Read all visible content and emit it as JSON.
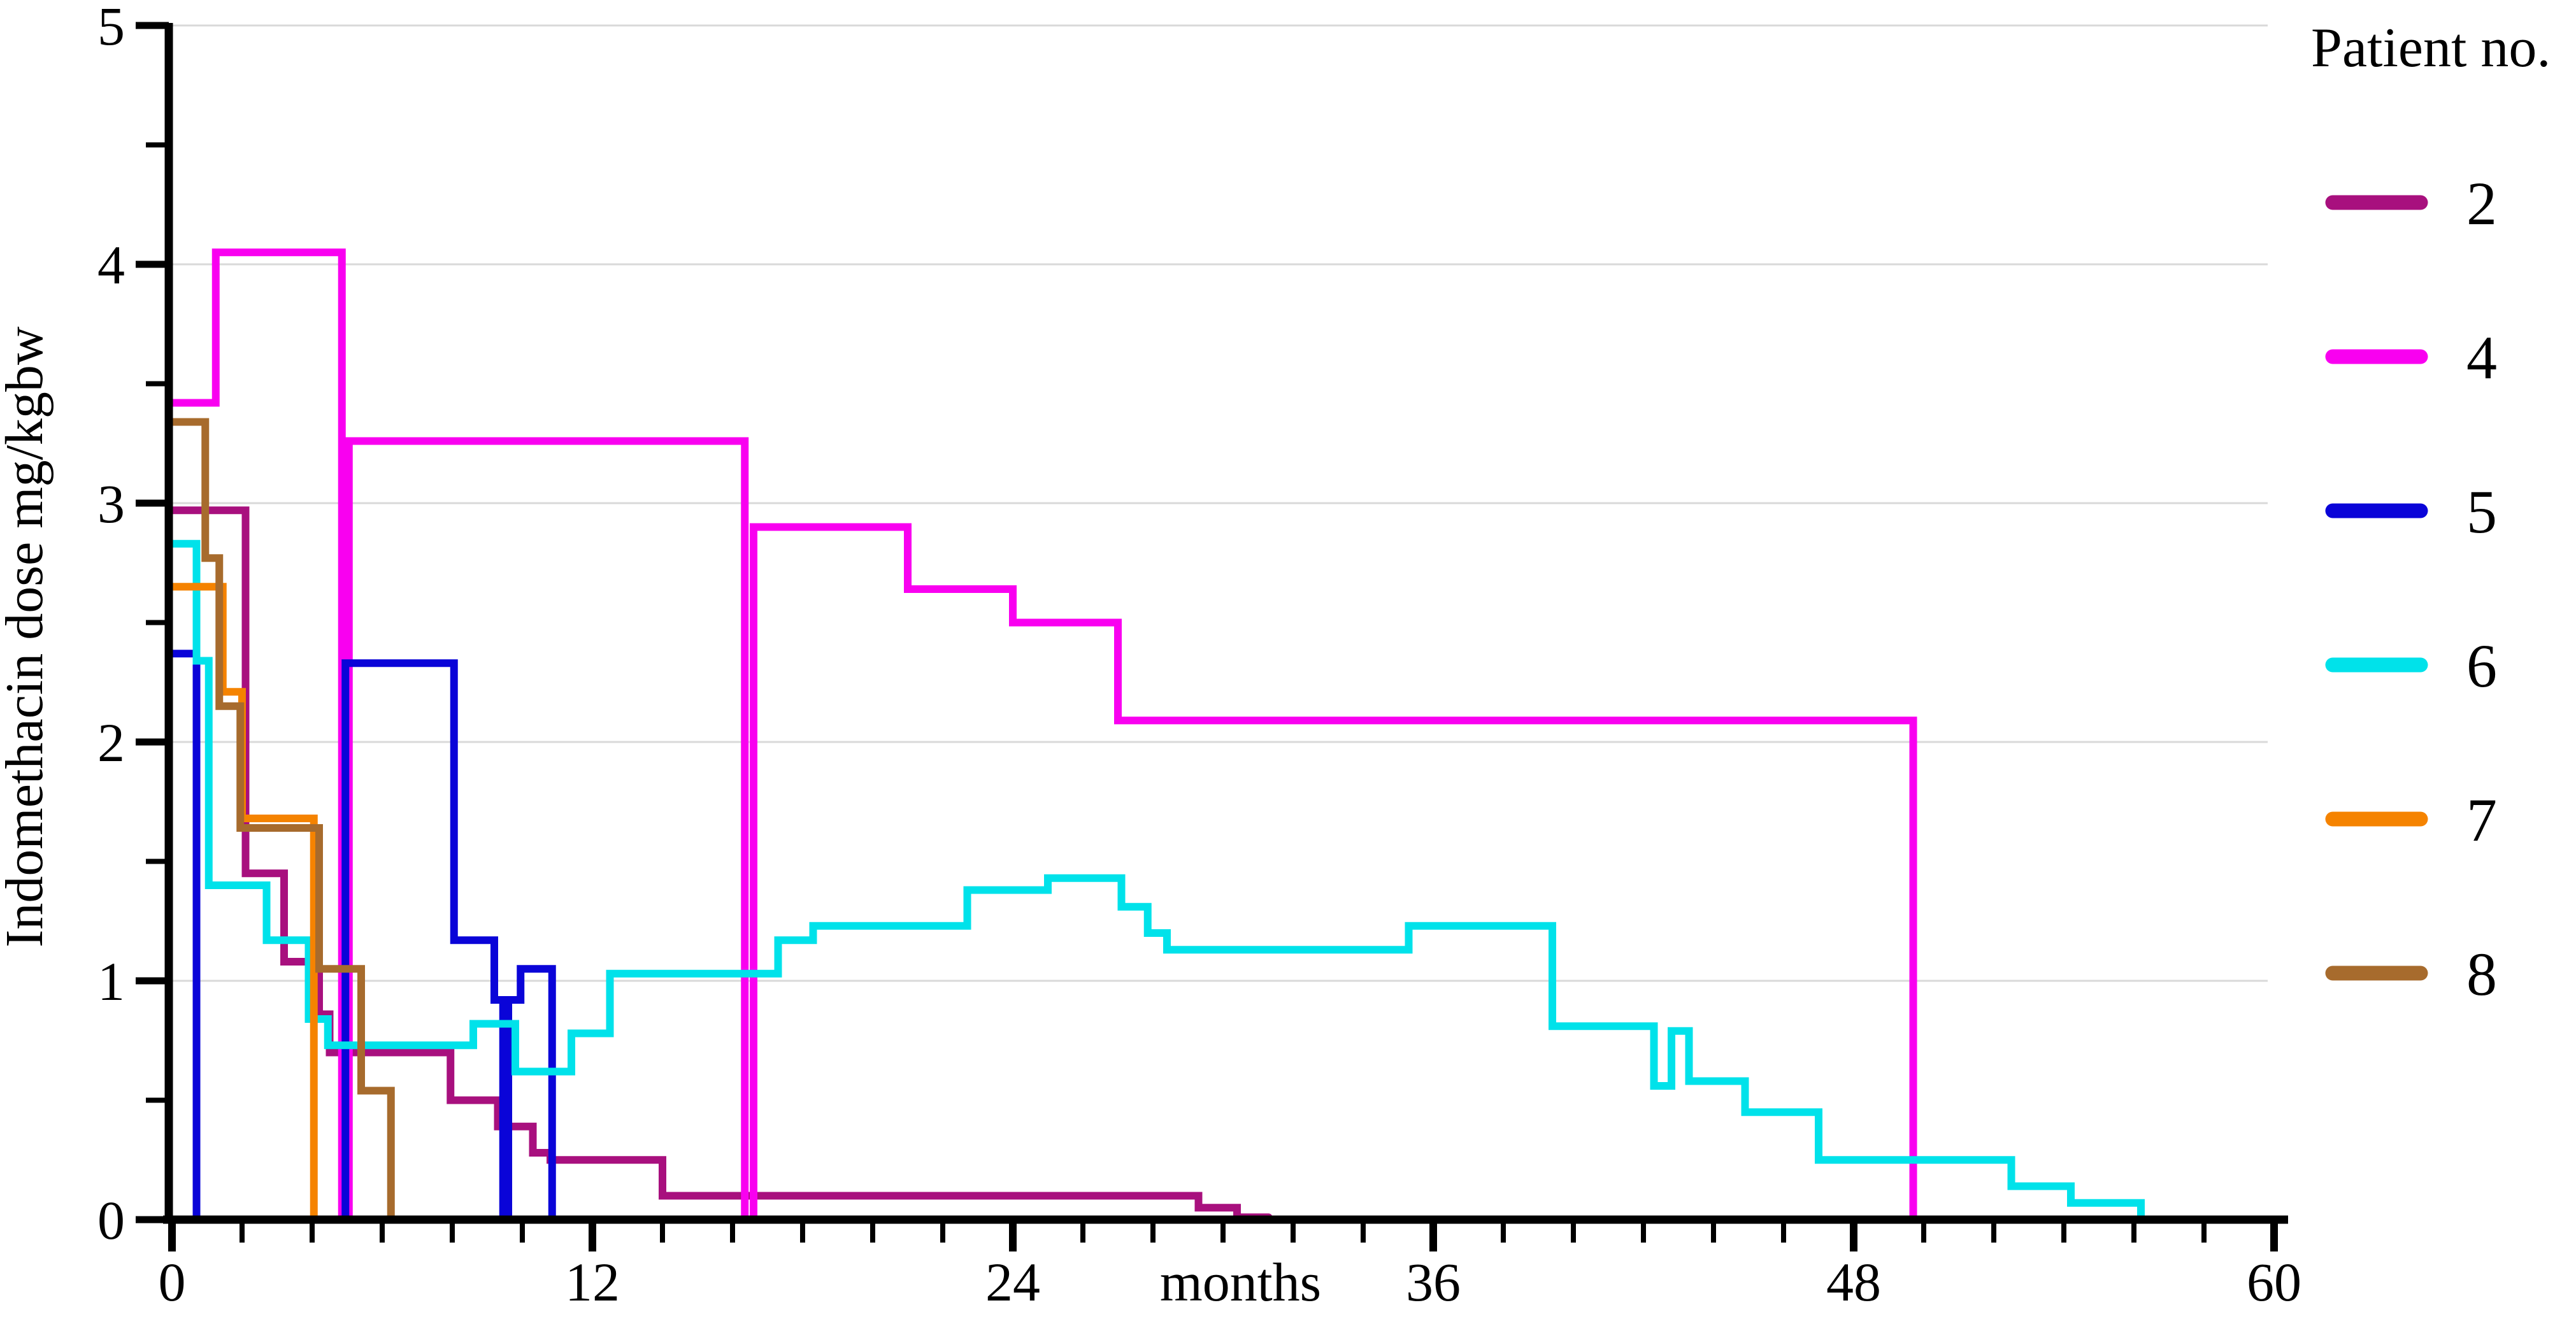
{
  "chart_data": {
    "type": "line",
    "subtype": "step-after",
    "title": "",
    "x_axis": {
      "label": "months",
      "range": [
        0,
        60
      ],
      "major_ticks": [
        0,
        12,
        24,
        36,
        48,
        60
      ],
      "minor_tick_step": 2,
      "unit_label_position_month": 30.5
    },
    "y_axis": {
      "label": "Indomethacin  dose mg/kgbw",
      "range": [
        0,
        5
      ],
      "major_ticks": [
        0,
        1,
        2,
        3,
        4,
        5
      ],
      "minor_tick_step": 0.5,
      "gridlines": [
        1,
        2,
        3,
        4,
        5
      ],
      "gridline_color": "#d9d9d9"
    },
    "legend": {
      "title": "Patient no.",
      "position": "right"
    },
    "series": [
      {
        "patient": "2",
        "color": "#A8107E",
        "points": [
          [
            0,
            2.97
          ],
          [
            2.1,
            1.45
          ],
          [
            3.2,
            1.08
          ],
          [
            4.2,
            0.86
          ],
          [
            4.5,
            0.7
          ],
          [
            7.95,
            0.5
          ],
          [
            9.3,
            0.39
          ],
          [
            10.3,
            0.28
          ],
          [
            10.8,
            0.25
          ],
          [
            14.0,
            0.1
          ],
          [
            29.3,
            0.05
          ],
          [
            30.4,
            0.01
          ]
        ],
        "end_month": 31.3
      },
      {
        "patient": "4",
        "color": "#F900F0",
        "points": [
          [
            0,
            3.42
          ],
          [
            1.25,
            4.05
          ],
          [
            4.85,
            0
          ],
          [
            5.05,
            3.26
          ],
          [
            16.35,
            0
          ],
          [
            16.6,
            2.9
          ],
          [
            21.0,
            2.64
          ],
          [
            24.0,
            2.5
          ],
          [
            27.0,
            2.09
          ],
          [
            49.7,
            0
          ]
        ],
        "end_month": 49.75
      },
      {
        "patient": "5",
        "color": "#0A04D8",
        "points": [
          [
            0,
            2.37
          ],
          [
            0.7,
            0
          ],
          [
            4.95,
            2.33
          ],
          [
            8.05,
            1.17
          ],
          [
            9.2,
            0.92
          ],
          [
            9.45,
            0
          ],
          [
            9.6,
            0.92
          ],
          [
            9.95,
            1.05
          ],
          [
            10.85,
            0
          ]
        ],
        "end_month": 10.9
      },
      {
        "patient": "6",
        "color": "#00E2EA",
        "points": [
          [
            0,
            2.83
          ],
          [
            0.7,
            2.34
          ],
          [
            1.05,
            1.4
          ],
          [
            2.7,
            1.17
          ],
          [
            3.9,
            0.84
          ],
          [
            4.45,
            0.73
          ],
          [
            8.6,
            0.82
          ],
          [
            9.8,
            0.62
          ],
          [
            11.4,
            0.78
          ],
          [
            12.5,
            1.03
          ],
          [
            17.3,
            1.17
          ],
          [
            18.3,
            1.23
          ],
          [
            22.7,
            1.38
          ],
          [
            25.0,
            1.43
          ],
          [
            27.1,
            1.31
          ],
          [
            27.85,
            1.2
          ],
          [
            28.4,
            1.13
          ],
          [
            35.3,
            1.23
          ],
          [
            39.4,
            0.81
          ],
          [
            42.3,
            0.56
          ],
          [
            42.8,
            0.79
          ],
          [
            43.3,
            0.58
          ],
          [
            44.9,
            0.45
          ],
          [
            47.0,
            0.25
          ],
          [
            52.5,
            0.14
          ],
          [
            54.2,
            0.07
          ],
          [
            56.2,
            0
          ]
        ],
        "end_month": 56.3
      },
      {
        "patient": "7",
        "color": "#F58300",
        "points": [
          [
            0,
            2.65
          ],
          [
            1.45,
            2.21
          ],
          [
            2.0,
            1.68
          ],
          [
            4.05,
            0
          ]
        ],
        "end_month": 4.1
      },
      {
        "patient": "8",
        "color": "#A76B2D",
        "points": [
          [
            0,
            3.34
          ],
          [
            0.95,
            2.77
          ],
          [
            1.35,
            2.15
          ],
          [
            1.95,
            1.64
          ],
          [
            4.2,
            1.05
          ],
          [
            5.4,
            0.54
          ],
          [
            6.25,
            0
          ]
        ],
        "end_month": 6.3
      }
    ]
  }
}
